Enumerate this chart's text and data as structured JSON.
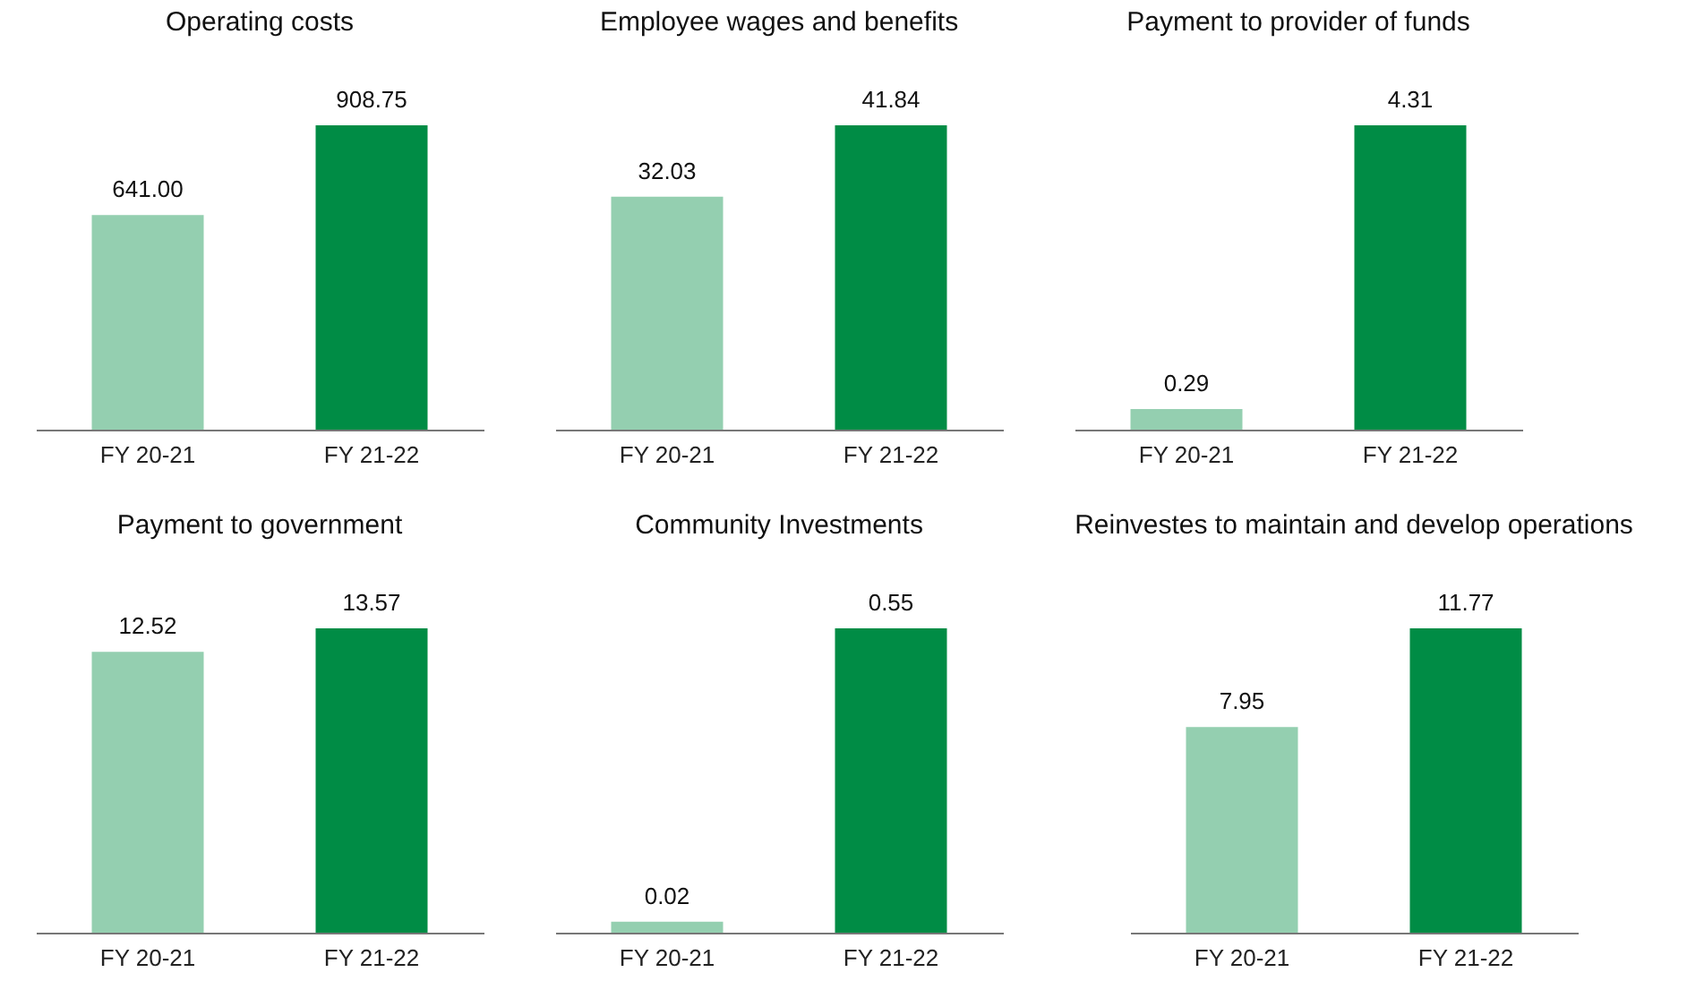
{
  "chart_data": [
    {
      "type": "bar",
      "title": "Operating costs",
      "categories": [
        "FY 20-21",
        "FY 21-22"
      ],
      "values": [
        641.0,
        908.75
      ],
      "value_labels": [
        "641.00",
        "908.75"
      ],
      "colors": [
        "#94cfb0",
        "#008c45"
      ],
      "tick_labels": "x"
    },
    {
      "type": "bar",
      "title": "Employee wages and benefits",
      "categories": [
        "FY 20-21",
        "FY 21-22"
      ],
      "values": [
        32.03,
        41.84
      ],
      "value_labels": [
        "32.03",
        "41.84"
      ],
      "colors": [
        "#94cfb0",
        "#008c45"
      ],
      "tick_labels": "x"
    },
    {
      "type": "bar",
      "title": "Payment to provider of funds",
      "categories": [
        "FY 20-21",
        "FY 21-22"
      ],
      "values": [
        0.29,
        4.31
      ],
      "value_labels": [
        "0.29",
        "4.31"
      ],
      "colors": [
        "#94cfb0",
        "#008c45"
      ],
      "tick_labels": "x"
    },
    {
      "type": "bar",
      "title": "Payment to government",
      "categories": [
        "FY 20-21",
        "FY 21-22"
      ],
      "values": [
        12.52,
        13.57
      ],
      "value_labels": [
        "12.52",
        "13.57"
      ],
      "colors": [
        "#94cfb0",
        "#008c45"
      ],
      "tick_labels": "x"
    },
    {
      "type": "bar",
      "title": "Community Investments",
      "categories": [
        "FY 20-21",
        "FY 21-22"
      ],
      "values": [
        0.02,
        0.55
      ],
      "value_labels": [
        "0.02",
        "0.55"
      ],
      "colors": [
        "#94cfb0",
        "#008c45"
      ],
      "tick_labels": "x"
    },
    {
      "type": "bar",
      "title": "Reinvestes to maintain and develop operations",
      "categories": [
        "FY 20-21",
        "FY 21-22"
      ],
      "values": [
        7.95,
        11.77
      ],
      "value_labels": [
        "7.95",
        "11.77"
      ],
      "colors": [
        "#94cfb0",
        "#008c45"
      ],
      "tick_labels": "x"
    }
  ]
}
